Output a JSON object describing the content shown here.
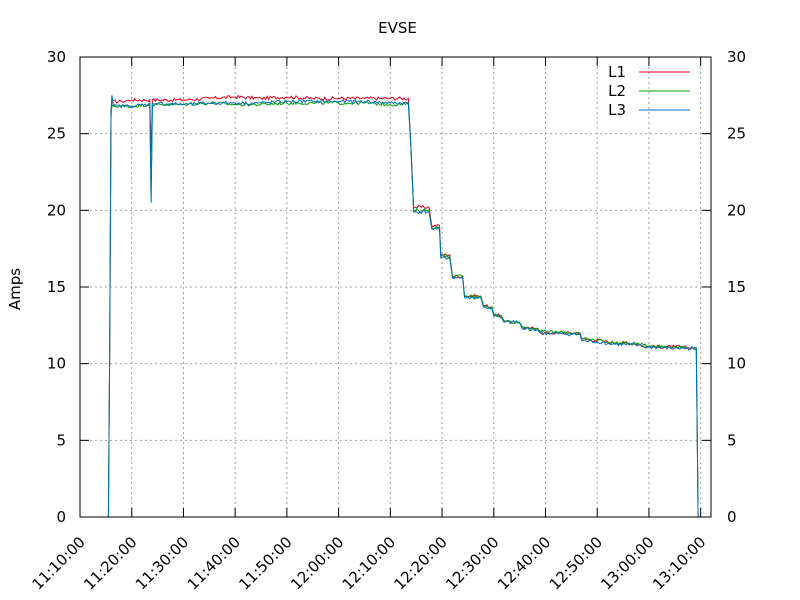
{
  "chart_data": {
    "type": "line",
    "title": "EVSE",
    "xlabel": "",
    "ylabel": "Amps",
    "x_type": "time",
    "xlim": [
      "11:10:00",
      "13:12:00"
    ],
    "ylim": [
      0,
      30
    ],
    "y_ticks": [
      0,
      5,
      10,
      15,
      20,
      25,
      30
    ],
    "y2_ticks": [
      0,
      5,
      10,
      15,
      20,
      25,
      30
    ],
    "x_ticks": [
      "11:10:00",
      "11:20:00",
      "11:30:00",
      "11:40:00",
      "11:50:00",
      "12:00:00",
      "12:10:00",
      "12:20:00",
      "12:30:00",
      "12:40:00",
      "12:50:00",
      "13:00:00",
      "13:10:00"
    ],
    "x_tick_rotation": -45,
    "grid": true,
    "grid_style": "dotted",
    "legend_position": "top-right",
    "series": [
      {
        "name": "L1",
        "color": "#e8001c",
        "points": [
          [
            "11:15:30",
            0
          ],
          [
            "11:15:45",
            11.2
          ],
          [
            "11:16:00",
            26.0
          ],
          [
            "11:16:10",
            27.1
          ],
          [
            "11:18:00",
            27.1
          ],
          [
            "11:20:00",
            27.2
          ],
          [
            "11:23:30",
            27.2
          ],
          [
            "11:23:45",
            23.8
          ],
          [
            "11:24:00",
            27.2
          ],
          [
            "11:30:00",
            27.2
          ],
          [
            "11:35:00",
            27.3
          ],
          [
            "11:40:00",
            27.4
          ],
          [
            "11:45:00",
            27.3
          ],
          [
            "11:50:00",
            27.4
          ],
          [
            "11:55:00",
            27.3
          ],
          [
            "12:00:00",
            27.3
          ],
          [
            "12:05:00",
            27.3
          ],
          [
            "12:10:00",
            27.3
          ],
          [
            "12:13:30",
            27.3
          ],
          [
            "12:14:00",
            24.1
          ],
          [
            "12:14:30",
            20.2
          ],
          [
            "12:17:30",
            20.2
          ],
          [
            "12:18:00",
            19.0
          ],
          [
            "12:19:30",
            19.0
          ],
          [
            "12:19:45",
            17.1
          ],
          [
            "12:21:30",
            17.1
          ],
          [
            "12:22:00",
            15.7
          ],
          [
            "12:24:00",
            15.7
          ],
          [
            "12:24:20",
            14.4
          ],
          [
            "12:27:30",
            14.4
          ],
          [
            "12:28:00",
            13.8
          ],
          [
            "12:29:40",
            13.7
          ],
          [
            "12:30:00",
            13.2
          ],
          [
            "12:31:30",
            13.1
          ],
          [
            "12:32:00",
            12.7
          ],
          [
            "12:35:00",
            12.7
          ],
          [
            "12:35:30",
            12.3
          ],
          [
            "12:38:30",
            12.3
          ],
          [
            "12:39:00",
            12.0
          ],
          [
            "12:46:40",
            12.0
          ],
          [
            "12:47:00",
            11.6
          ],
          [
            "12:51:00",
            11.5
          ],
          [
            "12:52:00",
            11.4
          ],
          [
            "12:58:00",
            11.3
          ],
          [
            "12:59:00",
            11.1
          ],
          [
            "13:05:00",
            11.1
          ],
          [
            "13:09:10",
            11.0
          ],
          [
            "13:09:20",
            5.5
          ],
          [
            "13:09:30",
            0
          ],
          [
            "13:10:00",
            0
          ]
        ]
      },
      {
        "name": "L2",
        "color": "#00a000",
        "points": [
          [
            "11:15:30",
            0
          ],
          [
            "11:15:45",
            11.2
          ],
          [
            "11:16:00",
            26.2
          ],
          [
            "11:16:10",
            26.8
          ],
          [
            "11:20:00",
            26.8
          ],
          [
            "11:23:30",
            26.9
          ],
          [
            "11:23:45",
            20.6
          ],
          [
            "11:24:00",
            26.9
          ],
          [
            "11:30:00",
            26.9
          ],
          [
            "11:35:00",
            27.0
          ],
          [
            "11:40:00",
            26.9
          ],
          [
            "11:45:00",
            26.9
          ],
          [
            "11:50:00",
            27.0
          ],
          [
            "11:55:00",
            27.0
          ],
          [
            "12:00:00",
            27.0
          ],
          [
            "12:05:00",
            27.0
          ],
          [
            "12:10:00",
            26.9
          ],
          [
            "12:13:30",
            26.9
          ],
          [
            "12:14:00",
            24.0
          ],
          [
            "12:14:30",
            20.0
          ],
          [
            "12:17:30",
            20.0
          ],
          [
            "12:18:00",
            18.9
          ],
          [
            "12:19:30",
            18.9
          ],
          [
            "12:19:45",
            17.0
          ],
          [
            "12:21:30",
            17.0
          ],
          [
            "12:22:00",
            15.7
          ],
          [
            "12:24:00",
            15.7
          ],
          [
            "12:24:20",
            14.4
          ],
          [
            "12:27:30",
            14.4
          ],
          [
            "12:28:00",
            13.8
          ],
          [
            "12:29:40",
            13.7
          ],
          [
            "12:30:00",
            13.2
          ],
          [
            "12:31:30",
            13.1
          ],
          [
            "12:32:00",
            12.8
          ],
          [
            "12:35:00",
            12.7
          ],
          [
            "12:35:30",
            12.4
          ],
          [
            "12:38:30",
            12.3
          ],
          [
            "12:39:00",
            12.1
          ],
          [
            "12:46:40",
            12.0
          ],
          [
            "12:47:00",
            11.6
          ],
          [
            "12:51:00",
            11.5
          ],
          [
            "12:52:00",
            11.4
          ],
          [
            "12:58:00",
            11.3
          ],
          [
            "12:59:00",
            11.2
          ],
          [
            "13:05:00",
            11.1
          ],
          [
            "13:09:10",
            11.0
          ],
          [
            "13:09:20",
            5.7
          ],
          [
            "13:09:30",
            0
          ],
          [
            "13:10:00",
            0
          ]
        ]
      },
      {
        "name": "L3",
        "color": "#0070c0",
        "points": [
          [
            "11:15:30",
            0
          ],
          [
            "11:15:45",
            11.0
          ],
          [
            "11:16:00",
            26.5
          ],
          [
            "11:16:10",
            27.5
          ],
          [
            "11:16:30",
            26.8
          ],
          [
            "11:20:00",
            26.8
          ],
          [
            "11:23:30",
            26.9
          ],
          [
            "11:23:45",
            20.5
          ],
          [
            "11:24:00",
            27.0
          ],
          [
            "11:30:00",
            26.9
          ],
          [
            "11:35:00",
            27.0
          ],
          [
            "11:40:00",
            27.0
          ],
          [
            "11:45:00",
            27.0
          ],
          [
            "11:50:00",
            27.1
          ],
          [
            "11:55:00",
            27.1
          ],
          [
            "12:00:00",
            27.1
          ],
          [
            "12:05:00",
            27.1
          ],
          [
            "12:10:00",
            27.0
          ],
          [
            "12:13:30",
            27.0
          ],
          [
            "12:14:00",
            24.0
          ],
          [
            "12:14:30",
            19.9
          ],
          [
            "12:17:30",
            19.9
          ],
          [
            "12:18:00",
            18.8
          ],
          [
            "12:19:30",
            18.8
          ],
          [
            "12:19:45",
            16.9
          ],
          [
            "12:21:30",
            16.9
          ],
          [
            "12:22:00",
            15.6
          ],
          [
            "12:24:00",
            15.6
          ],
          [
            "12:24:20",
            14.3
          ],
          [
            "12:27:30",
            14.3
          ],
          [
            "12:28:00",
            13.7
          ],
          [
            "12:29:40",
            13.6
          ],
          [
            "12:30:00",
            13.1
          ],
          [
            "12:31:30",
            13.0
          ],
          [
            "12:32:00",
            12.7
          ],
          [
            "12:35:00",
            12.7
          ],
          [
            "12:35:30",
            12.3
          ],
          [
            "12:38:30",
            12.2
          ],
          [
            "12:39:00",
            12.0
          ],
          [
            "12:46:40",
            11.9
          ],
          [
            "12:47:00",
            11.5
          ],
          [
            "12:51:00",
            11.4
          ],
          [
            "12:52:00",
            11.3
          ],
          [
            "12:58:00",
            11.2
          ],
          [
            "12:59:00",
            11.1
          ],
          [
            "13:05:00",
            11.0
          ],
          [
            "13:09:10",
            11.0
          ],
          [
            "13:09:20",
            5.6
          ],
          [
            "13:09:30",
            0
          ],
          [
            "13:10:00",
            0
          ]
        ]
      }
    ]
  }
}
